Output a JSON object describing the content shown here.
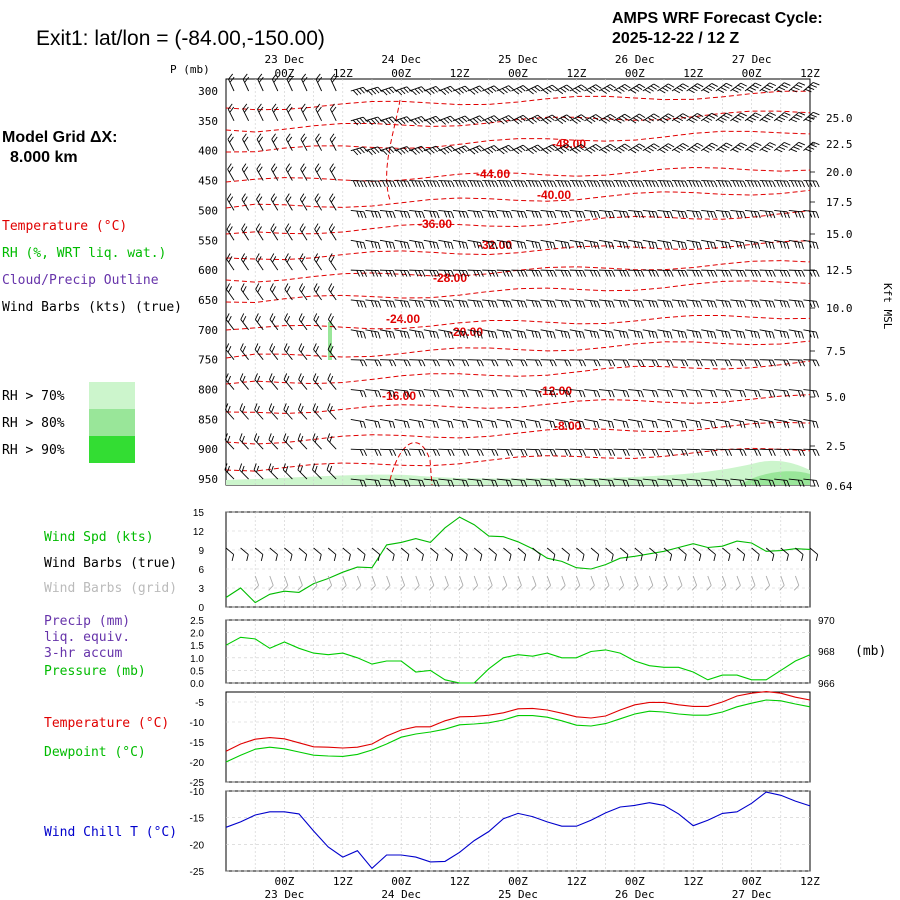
{
  "header": {
    "site_title": "Exit1:  lat/lon = (-84.00,-150.00)",
    "forecast_line1": "AMPS WRF Forecast Cycle:",
    "forecast_line2": "2025-12-22 / 12  Z"
  },
  "left_panel": {
    "grid_label": "Model Grid ΔX:",
    "grid_value": "8.000 km",
    "temperature_legend": "Temperature (°C)",
    "rh_legend": "RH (%, WRT liq. wat.)",
    "cloud_legend": "Cloud/Precip Outline",
    "wind_legend": "Wind Barbs (kts) (true)",
    "rh70": "RH > 70%",
    "rh80": "RH > 80%",
    "rh90": "RH > 90%"
  },
  "colors": {
    "rh70": "#ccf5cc",
    "rh80": "#99e699",
    "rh90": "#33dd33",
    "temperature": "#e00000",
    "dewpoint": "#00cc00",
    "wind_speed": "#00bb00",
    "wind_chill": "#0000cc",
    "cloud": "#6633aa",
    "grid_barbs": "#aaaaaa"
  },
  "time_axis": {
    "day_labels": [
      {
        "label": "23 Dec",
        "index": 2
      },
      {
        "label": "24 Dec",
        "index": 6
      },
      {
        "label": "25 Dec",
        "index": 10
      },
      {
        "label": "26 Dec",
        "index": 14
      },
      {
        "label": "27 Dec",
        "index": 18
      }
    ],
    "hour_labels": [
      {
        "label": "00Z",
        "index": 2
      },
      {
        "label": "12Z",
        "index": 4
      },
      {
        "label": "00Z",
        "index": 6
      },
      {
        "label": "12Z",
        "index": 8
      },
      {
        "label": "00Z",
        "index": 10
      },
      {
        "label": "12Z",
        "index": 12
      },
      {
        "label": "00Z",
        "index": 14
      },
      {
        "label": "12Z",
        "index": 16
      },
      {
        "label": "00Z",
        "index": 18
      },
      {
        "label": "12Z",
        "index": 20
      }
    ]
  },
  "chart_data": [
    {
      "id": "cross-section",
      "type": "heatmap",
      "ylabel": "P (mb)",
      "y_right_label": "Kft MSL",
      "pressure_levels": [
        300,
        350,
        400,
        450,
        500,
        550,
        600,
        650,
        700,
        750,
        800,
        850,
        900,
        950
      ],
      "height_ticks": [
        "25.0",
        "22.5",
        "20.0",
        "17.5",
        "15.0",
        "12.5",
        "10.0",
        "7.5",
        "5.0",
        "2.5",
        "0.64"
      ],
      "temperature_contour_labels": [
        "-48.00",
        "-44.00",
        "-40.00",
        "-36.00",
        "-32.00",
        "-28.00",
        "-24.00",
        "-20.00",
        "-16.00",
        "-12.00",
        "-8.00"
      ]
    },
    {
      "id": "wind",
      "type": "line",
      "ylim": [
        0,
        15
      ],
      "y_ticks": [
        "15",
        "12",
        "9",
        "6",
        "3",
        "0"
      ],
      "labels": [
        "Wind Spd (kts)",
        "Wind Barbs (true)",
        "Wind Barbs (grid)"
      ],
      "x": [
        0,
        0.5,
        1,
        1.5,
        2,
        2.5,
        3,
        3.5,
        4,
        4.5,
        5,
        5.5,
        6,
        6.5,
        7,
        7.5,
        8,
        8.5,
        9,
        9.5,
        10,
        10.5,
        11,
        11.5,
        12,
        12.5,
        13,
        13.5,
        14,
        14.5,
        15,
        15.5,
        16,
        16.5,
        17,
        17.5,
        18,
        18.5,
        19,
        19.5,
        20
      ],
      "series": [
        {
          "name": "Wind Spd (kts)",
          "values": [
            1.5,
            3,
            0.7,
            2,
            2.5,
            2.3,
            3.7,
            4.5,
            5.5,
            6.3,
            6.2,
            9.8,
            10.2,
            10.8,
            10.2,
            12.5,
            14.2,
            13,
            11.2,
            11.1,
            10.3,
            9.2,
            7.7,
            7.2,
            6.2,
            6,
            6.7,
            7.7,
            8,
            8.4,
            8.8,
            9.4,
            10,
            9.4,
            9.6,
            10.4,
            10.1,
            8.8,
            8.9,
            9.2,
            9.1
          ]
        }
      ]
    },
    {
      "id": "precip-pressure",
      "type": "line",
      "ylim": [
        0,
        2.5
      ],
      "y_ticks": [
        "2.5",
        "2.0",
        "1.5",
        "1.0",
        "0.5",
        "0.0"
      ],
      "y_right_ticks": [
        "970",
        "968",
        "966"
      ],
      "y_right_label": "(mb)",
      "labels": [
        "Precip (mm)",
        "liq. equiv.",
        "3-hr accum",
        "Pressure (mb)"
      ],
      "x": [
        0,
        0.5,
        1,
        1.5,
        2,
        2.5,
        3,
        3.5,
        4,
        4.5,
        5,
        5.5,
        6,
        6.5,
        7,
        7.5,
        8,
        8.5,
        9,
        9.5,
        10,
        10.5,
        11,
        11.5,
        12,
        12.5,
        13,
        13.5,
        14,
        14.5,
        15,
        15.5,
        16,
        16.5,
        17,
        17.5,
        18,
        18.5,
        19,
        19.5,
        20
      ],
      "series": [
        {
          "name": "Pressure (mb)",
          "values": [
            968.4,
            968.9,
            968.8,
            968.2,
            968.6,
            968.2,
            967.9,
            967.8,
            967.9,
            967.6,
            967.2,
            967.4,
            967.4,
            966.7,
            966.8,
            966.2,
            966.0,
            966.0,
            966.9,
            967.6,
            967.8,
            967.7,
            967.9,
            967.6,
            967.6,
            968.0,
            968.1,
            967.9,
            967.4,
            967.1,
            967.0,
            967.0,
            966.7,
            966.2,
            966.5,
            966.5,
            966.2,
            966.2,
            966.8,
            967.4,
            967.8
          ]
        }
      ]
    },
    {
      "id": "temperature",
      "type": "line",
      "ylim": [
        -25,
        -2.5
      ],
      "y_ticks": [
        "-5",
        "-10",
        "-15",
        "-20",
        "-25"
      ],
      "labels": [
        "Temperature (°C)",
        "Dewpoint (°C)"
      ],
      "x": [
        0,
        0.5,
        1,
        1.5,
        2,
        2.5,
        3,
        3.5,
        4,
        4.5,
        5,
        5.5,
        6,
        6.5,
        7,
        7.5,
        8,
        8.5,
        9,
        9.5,
        10,
        10.5,
        11,
        11.5,
        12,
        12.5,
        13,
        13.5,
        14,
        14.5,
        15,
        15.5,
        16,
        16.5,
        17,
        17.5,
        18,
        18.5,
        19,
        19.5,
        20
      ],
      "series": [
        {
          "name": "Temperature (°C)",
          "values": [
            -17.3,
            -15.5,
            -14.3,
            -13.9,
            -14.2,
            -15.2,
            -16.2,
            -16.3,
            -16.5,
            -16.3,
            -15.5,
            -13.5,
            -12.0,
            -11.2,
            -11.2,
            -9.7,
            -8.7,
            -8.6,
            -8.3,
            -7.7,
            -6.7,
            -6.6,
            -7.0,
            -7.8,
            -8.7,
            -9.0,
            -8.5,
            -7.0,
            -5.7,
            -5.1,
            -5.1,
            -5.7,
            -6.1,
            -6.1,
            -5.0,
            -3.5,
            -2.8,
            -2.4,
            -2.8,
            -3.8,
            -4.5
          ]
        },
        {
          "name": "Dewpoint (°C)",
          "values": [
            -20.0,
            -18.3,
            -16.8,
            -16.3,
            -16.7,
            -17.5,
            -18.3,
            -18.5,
            -18.6,
            -18.1,
            -17.0,
            -15.5,
            -13.8,
            -13.0,
            -12.5,
            -11.8,
            -10.7,
            -10.5,
            -10.2,
            -9.5,
            -8.4,
            -8.4,
            -8.8,
            -9.7,
            -10.8,
            -11.0,
            -10.4,
            -9.2,
            -8.0,
            -7.3,
            -7.5,
            -8.0,
            -8.3,
            -8.3,
            -7.5,
            -6.2,
            -5.3,
            -4.5,
            -4.7,
            -5.5,
            -6.2
          ]
        }
      ]
    },
    {
      "id": "wind-chill",
      "type": "line",
      "ylim": [
        -25,
        -10
      ],
      "y_ticks": [
        "-10",
        "-15",
        "-20",
        "-25"
      ],
      "labels": [
        "Wind Chill T (°C)"
      ],
      "x": [
        0,
        0.5,
        1,
        1.5,
        2,
        2.5,
        3,
        3.5,
        4,
        4.5,
        5,
        5.5,
        6,
        6.5,
        7,
        7.5,
        8,
        8.5,
        9,
        9.5,
        10,
        10.5,
        11,
        11.5,
        12,
        12.5,
        13,
        13.5,
        14,
        14.5,
        15,
        15.5,
        16,
        16.5,
        17,
        17.5,
        18,
        18.5,
        19,
        19.5,
        20
      ],
      "series": [
        {
          "name": "Wind Chill T (°C)",
          "values": [
            -16.8,
            -15.8,
            -14.5,
            -13.9,
            -13.9,
            -14.3,
            -17.5,
            -20.5,
            -22.4,
            -21.2,
            -24.5,
            -22.0,
            -22.0,
            -22.4,
            -23.3,
            -23.2,
            -21.5,
            -19.3,
            -17.6,
            -15.2,
            -14.2,
            -14.8,
            -15.8,
            -16.6,
            -16.6,
            -15.5,
            -14.1,
            -13.0,
            -12.7,
            -12.2,
            -12.7,
            -14.3,
            -16.5,
            -15.5,
            -14.2,
            -13.9,
            -12.3,
            -10.2,
            -10.8,
            -11.9,
            -12.8
          ]
        }
      ]
    }
  ]
}
